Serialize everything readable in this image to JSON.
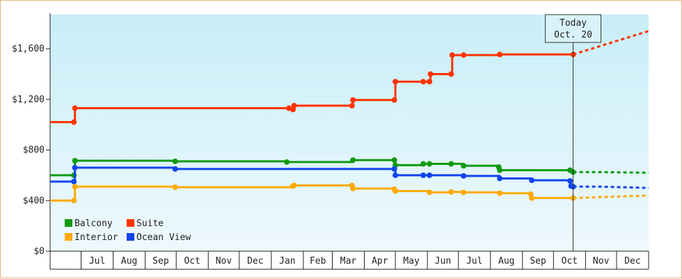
{
  "chart_data": {
    "type": "line",
    "step": true,
    "y_axis": {
      "min": 0,
      "max": 1870,
      "ticks": [
        0,
        400,
        800,
        1200,
        1600
      ],
      "tick_labels": [
        "$0",
        "$400",
        "$800",
        "$1,200",
        "$1,600"
      ]
    },
    "x_axis": {
      "start": "2014-06-01",
      "end": "2016-01-01",
      "month_labels": [
        {
          "label": "Jul",
          "date": "2014-07-01"
        },
        {
          "label": "Aug",
          "date": "2014-08-01"
        },
        {
          "label": "Sep",
          "date": "2014-09-01"
        },
        {
          "label": "Oct",
          "date": "2014-10-01"
        },
        {
          "label": "Nov",
          "date": "2014-11-01"
        },
        {
          "label": "Dec",
          "date": "2014-12-01"
        },
        {
          "label": "Jan",
          "date": "2015-01-01"
        },
        {
          "label": "Feb",
          "date": "2015-02-01"
        },
        {
          "label": "Mar",
          "date": "2015-03-01"
        },
        {
          "label": "Apr",
          "date": "2015-04-01"
        },
        {
          "label": "May",
          "date": "2015-05-01"
        },
        {
          "label": "Jun",
          "date": "2015-06-01"
        },
        {
          "label": "Jul",
          "date": "2015-07-01"
        },
        {
          "label": "Aug",
          "date": "2015-08-01"
        },
        {
          "label": "Sep",
          "date": "2015-09-01"
        },
        {
          "label": "Oct",
          "date": "2015-10-01"
        },
        {
          "label": "Nov",
          "date": "2015-11-01"
        },
        {
          "label": "Dec",
          "date": "2015-12-01"
        }
      ]
    },
    "today": {
      "line1": "Today",
      "line2": "Oct. 20",
      "date": "2015-10-20"
    },
    "legend_placement": "bottom-left",
    "grid": false,
    "series": [
      {
        "name": "Suite",
        "color": "#ff3300",
        "points": [
          {
            "x": "2014-06-01",
            "y": 1020
          },
          {
            "x": "2014-06-24",
            "y": 1020
          },
          {
            "x": "2014-06-25",
            "y": 1130
          },
          {
            "x": "2015-01-18",
            "y": 1130
          },
          {
            "x": "2015-01-22",
            "y": 1120
          },
          {
            "x": "2015-01-23",
            "y": 1150
          },
          {
            "x": "2015-03-20",
            "y": 1150
          },
          {
            "x": "2015-03-21",
            "y": 1195
          },
          {
            "x": "2015-04-30",
            "y": 1195
          },
          {
            "x": "2015-05-01",
            "y": 1340
          },
          {
            "x": "2015-05-28",
            "y": 1340
          },
          {
            "x": "2015-06-03",
            "y": 1340
          },
          {
            "x": "2015-06-04",
            "y": 1400
          },
          {
            "x": "2015-06-24",
            "y": 1400
          },
          {
            "x": "2015-06-25",
            "y": 1550
          },
          {
            "x": "2015-07-06",
            "y": 1550
          },
          {
            "x": "2015-08-10",
            "y": 1555
          },
          {
            "x": "2015-10-20",
            "y": 1555
          }
        ],
        "forecast": [
          {
            "x": "2015-10-20",
            "y": 1555
          },
          {
            "x": "2016-01-01",
            "y": 1740
          }
        ]
      },
      {
        "name": "Balcony",
        "color": "#119911",
        "points": [
          {
            "x": "2014-06-01",
            "y": 600
          },
          {
            "x": "2014-06-24",
            "y": 600
          },
          {
            "x": "2014-06-25",
            "y": 715
          },
          {
            "x": "2014-09-30",
            "y": 710
          },
          {
            "x": "2015-01-16",
            "y": 705
          },
          {
            "x": "2015-03-21",
            "y": 720
          },
          {
            "x": "2015-04-30",
            "y": 720
          },
          {
            "x": "2015-05-01",
            "y": 680
          },
          {
            "x": "2015-05-28",
            "y": 690
          },
          {
            "x": "2015-06-03",
            "y": 690
          },
          {
            "x": "2015-06-24",
            "y": 690
          },
          {
            "x": "2015-07-06",
            "y": 675
          },
          {
            "x": "2015-08-09",
            "y": 665
          },
          {
            "x": "2015-08-10",
            "y": 640
          },
          {
            "x": "2015-10-17",
            "y": 640
          },
          {
            "x": "2015-10-20",
            "y": 625
          }
        ],
        "forecast": [
          {
            "x": "2015-10-20",
            "y": 625
          },
          {
            "x": "2015-11-15",
            "y": 625
          },
          {
            "x": "2016-01-01",
            "y": 620
          }
        ]
      },
      {
        "name": "Ocean View",
        "color": "#1144ee",
        "points": [
          {
            "x": "2014-06-01",
            "y": 550
          },
          {
            "x": "2014-06-24",
            "y": 550
          },
          {
            "x": "2014-06-25",
            "y": 660
          },
          {
            "x": "2014-09-30",
            "y": 650
          },
          {
            "x": "2015-04-30",
            "y": 650
          },
          {
            "x": "2015-05-01",
            "y": 600
          },
          {
            "x": "2015-05-28",
            "y": 600
          },
          {
            "x": "2015-06-03",
            "y": 600
          },
          {
            "x": "2015-07-06",
            "y": 595
          },
          {
            "x": "2015-08-10",
            "y": 575
          },
          {
            "x": "2015-09-10",
            "y": 560
          },
          {
            "x": "2015-10-17",
            "y": 555
          },
          {
            "x": "2015-10-18",
            "y": 515
          },
          {
            "x": "2015-10-20",
            "y": 510
          }
        ],
        "forecast": [
          {
            "x": "2015-10-20",
            "y": 510
          },
          {
            "x": "2015-11-15",
            "y": 510
          },
          {
            "x": "2016-01-01",
            "y": 500
          }
        ]
      },
      {
        "name": "Interior",
        "color": "#ffaa00",
        "points": [
          {
            "x": "2014-06-01",
            "y": 400
          },
          {
            "x": "2014-06-24",
            "y": 400
          },
          {
            "x": "2014-06-25",
            "y": 510
          },
          {
            "x": "2014-09-30",
            "y": 505
          },
          {
            "x": "2015-01-22",
            "y": 515
          },
          {
            "x": "2015-01-23",
            "y": 520
          },
          {
            "x": "2015-03-20",
            "y": 520
          },
          {
            "x": "2015-03-21",
            "y": 495
          },
          {
            "x": "2015-04-30",
            "y": 490
          },
          {
            "x": "2015-05-01",
            "y": 475
          },
          {
            "x": "2015-06-03",
            "y": 465
          },
          {
            "x": "2015-06-24",
            "y": 468
          },
          {
            "x": "2015-07-06",
            "y": 465
          },
          {
            "x": "2015-08-10",
            "y": 458
          },
          {
            "x": "2015-09-09",
            "y": 450
          },
          {
            "x": "2015-09-10",
            "y": 420
          },
          {
            "x": "2015-10-20",
            "y": 420
          }
        ],
        "forecast": [
          {
            "x": "2015-10-20",
            "y": 420
          },
          {
            "x": "2016-01-01",
            "y": 440
          }
        ]
      }
    ],
    "legend": [
      {
        "name": "Balcony",
        "color": "#119911"
      },
      {
        "name": "Suite",
        "color": "#ff3300"
      },
      {
        "name": "Interior",
        "color": "#ffaa00"
      },
      {
        "name": "Ocean View",
        "color": "#1144ee"
      }
    ]
  }
}
